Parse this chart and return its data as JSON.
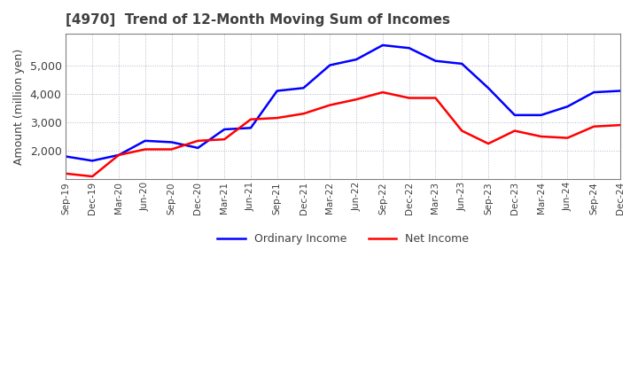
{
  "title": "[4970]  Trend of 12-Month Moving Sum of Incomes",
  "ylabel": "Amount (million yen)",
  "title_color": "#404040",
  "grid_color": "#b0b8c8",
  "background_color": "#ffffff",
  "plot_background": "#ffffff",
  "x_labels": [
    "Sep-19",
    "Dec-19",
    "Mar-20",
    "Jun-20",
    "Sep-20",
    "Dec-20",
    "Mar-21",
    "Jun-21",
    "Sep-21",
    "Dec-21",
    "Mar-22",
    "Jun-22",
    "Sep-22",
    "Dec-22",
    "Mar-23",
    "Jun-23",
    "Sep-23",
    "Dec-23",
    "Mar-24",
    "Jun-24",
    "Sep-24",
    "Dec-24"
  ],
  "ordinary_income": [
    1800,
    1650,
    1850,
    2350,
    2300,
    2100,
    2750,
    2800,
    4100,
    4200,
    5000,
    5200,
    5700,
    5600,
    5150,
    5050,
    4200,
    3250,
    3250,
    3550,
    4050,
    4100
  ],
  "net_income": [
    1200,
    1100,
    1850,
    2050,
    2050,
    2350,
    2400,
    3100,
    3150,
    3300,
    3600,
    3800,
    4050,
    3850,
    3850,
    2700,
    2250,
    2700,
    2500,
    2450,
    2850,
    2900
  ],
  "ordinary_color": "#0000ff",
  "net_color": "#ff0000",
  "ylim": [
    1000,
    6100
  ],
  "yticks": [
    2000,
    3000,
    4000,
    5000
  ],
  "legend_labels": [
    "Ordinary Income",
    "Net Income"
  ]
}
